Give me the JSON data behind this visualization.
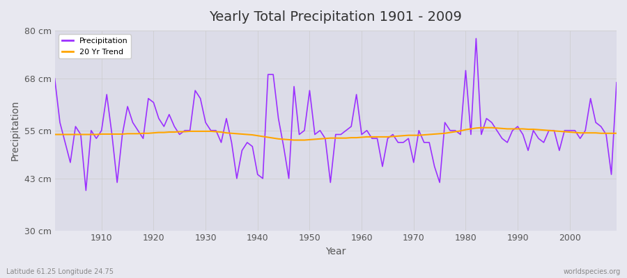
{
  "title": "Yearly Total Precipitation 1901 - 2009",
  "xlabel": "Year",
  "ylabel": "Precipitation",
  "footnote_left": "Latitude 61.25 Longitude 24.75",
  "footnote_right": "worldspecies.org",
  "line_color": "#9B30FF",
  "trend_color": "#FFA500",
  "bg_color": "#E8E8F0",
  "plot_bg_color": "#DCDCE8",
  "ylim": [
    30,
    80
  ],
  "yticks": [
    30,
    43,
    55,
    68,
    80
  ],
  "ytick_labels": [
    "30 cm",
    "43 cm",
    "55 cm",
    "68 cm",
    "80 cm"
  ],
  "years": [
    1901,
    1902,
    1903,
    1904,
    1905,
    1906,
    1907,
    1908,
    1909,
    1910,
    1911,
    1912,
    1913,
    1914,
    1915,
    1916,
    1917,
    1918,
    1919,
    1920,
    1921,
    1922,
    1923,
    1924,
    1925,
    1926,
    1927,
    1928,
    1929,
    1930,
    1931,
    1932,
    1933,
    1934,
    1935,
    1936,
    1937,
    1938,
    1939,
    1940,
    1941,
    1942,
    1943,
    1944,
    1945,
    1946,
    1947,
    1948,
    1949,
    1950,
    1951,
    1952,
    1953,
    1954,
    1955,
    1956,
    1957,
    1958,
    1959,
    1960,
    1961,
    1962,
    1963,
    1964,
    1965,
    1966,
    1967,
    1968,
    1969,
    1970,
    1971,
    1972,
    1973,
    1974,
    1975,
    1976,
    1977,
    1978,
    1979,
    1980,
    1981,
    1982,
    1983,
    1984,
    1985,
    1986,
    1987,
    1988,
    1989,
    1990,
    1991,
    1992,
    1993,
    1994,
    1995,
    1996,
    1997,
    1998,
    1999,
    2000,
    2001,
    2002,
    2003,
    2004,
    2005,
    2006,
    2007,
    2008,
    2009
  ],
  "precipitation": [
    68,
    57,
    52,
    47,
    56,
    54,
    40,
    55,
    53,
    55,
    64,
    54,
    42,
    54,
    61,
    57,
    55,
    53,
    63,
    62,
    58,
    56,
    59,
    56,
    54,
    55,
    55,
    65,
    63,
    57,
    55,
    55,
    52,
    58,
    52,
    43,
    50,
    52,
    51,
    44,
    43,
    69,
    69,
    58,
    51,
    43,
    66,
    54,
    55,
    65,
    54,
    55,
    53,
    42,
    54,
    54,
    55,
    56,
    64,
    54,
    55,
    53,
    53,
    46,
    53,
    54,
    52,
    52,
    53,
    47,
    55,
    52,
    52,
    46,
    42,
    57,
    55,
    55,
    54,
    70,
    54,
    78,
    54,
    58,
    57,
    55,
    53,
    52,
    55,
    56,
    54,
    50,
    55,
    53,
    52,
    55,
    55,
    50,
    55,
    55,
    55,
    53,
    55,
    63,
    57,
    56,
    54,
    44,
    67
  ],
  "trend": [
    54.0,
    54.0,
    54.0,
    54.0,
    54.0,
    54.0,
    54.0,
    54.0,
    54.0,
    54.1,
    54.1,
    54.1,
    54.1,
    54.1,
    54.2,
    54.2,
    54.2,
    54.3,
    54.3,
    54.4,
    54.5,
    54.5,
    54.6,
    54.6,
    54.7,
    54.7,
    54.8,
    54.8,
    54.8,
    54.8,
    54.8,
    54.7,
    54.6,
    54.4,
    54.3,
    54.2,
    54.1,
    54.0,
    53.9,
    53.7,
    53.5,
    53.3,
    53.1,
    52.9,
    52.8,
    52.7,
    52.6,
    52.6,
    52.6,
    52.7,
    52.8,
    52.9,
    53.0,
    53.1,
    53.1,
    53.1,
    53.1,
    53.2,
    53.2,
    53.3,
    53.4,
    53.4,
    53.4,
    53.4,
    53.4,
    53.5,
    53.6,
    53.7,
    53.8,
    53.8,
    53.8,
    53.9,
    54.0,
    54.1,
    54.2,
    54.3,
    54.5,
    54.7,
    54.9,
    55.2,
    55.4,
    55.6,
    55.7,
    55.7,
    55.7,
    55.6,
    55.5,
    55.4,
    55.4,
    55.4,
    55.4,
    55.3,
    55.3,
    55.2,
    55.1,
    55.0,
    54.9,
    54.8,
    54.7,
    54.6,
    54.5,
    54.4,
    54.4,
    54.4,
    54.4,
    54.3,
    54.3,
    54.3,
    54.3
  ]
}
